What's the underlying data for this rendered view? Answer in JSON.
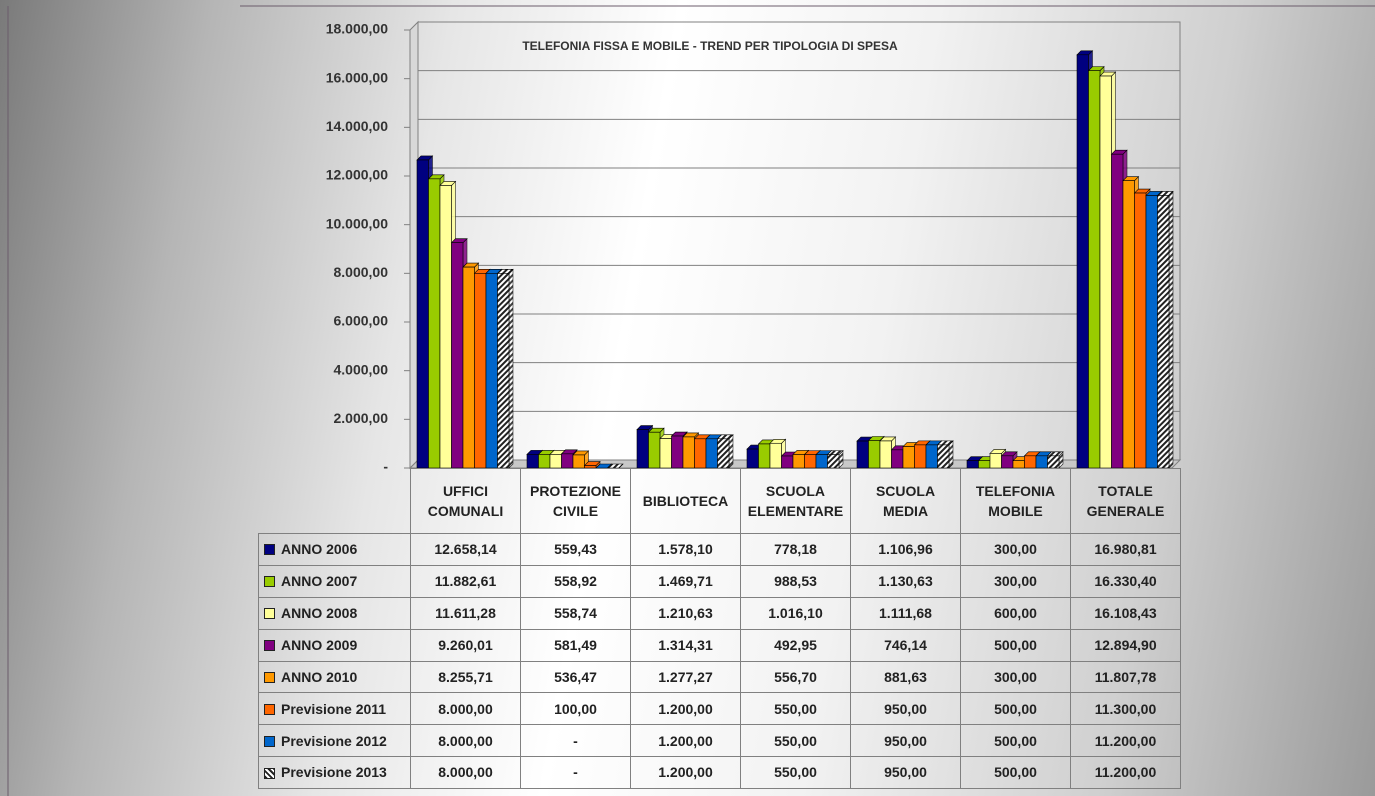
{
  "chart_data": {
    "type": "bar",
    "title": "TELEFONIA FISSA E MOBILE - TREND PER TIPOLOGIA DI SPESA",
    "categories": [
      "UFFICI\nCOMUNALI",
      "PROTEZIONE\nCIVILE",
      "BIBLIOTECA",
      "SCUOLA\nELEMENTARE",
      "SCUOLA\nMEDIA",
      "TELEFONIA\nMOBILE",
      "TOTALE\nGENERALE"
    ],
    "ylim": [
      0,
      18000
    ],
    "yticks": [
      {
        "value": 0,
        "label": "-"
      },
      {
        "value": 2000,
        "label": "2.000,00"
      },
      {
        "value": 4000,
        "label": "4.000,00"
      },
      {
        "value": 6000,
        "label": "6.000,00"
      },
      {
        "value": 8000,
        "label": "8.000,00"
      },
      {
        "value": 10000,
        "label": "10.000,00"
      },
      {
        "value": 12000,
        "label": "12.000,00"
      },
      {
        "value": 14000,
        "label": "14.000,00"
      },
      {
        "value": 16000,
        "label": "16.000,00"
      },
      {
        "value": 18000,
        "label": "18.000,00"
      }
    ],
    "grid": true,
    "series": [
      {
        "name": "ANNO 2006",
        "color": "#000080",
        "values": [
          12658.14,
          559.43,
          1578.1,
          778.18,
          1106.96,
          300,
          16980.81
        ],
        "value_labels": [
          "12.658,14",
          "559,43",
          "1.578,10",
          "778,18",
          "1.106,96",
          "300,00",
          "16.980,81"
        ]
      },
      {
        "name": "ANNO 2007",
        "color": "#99cc00",
        "values": [
          11882.61,
          558.92,
          1469.71,
          988.53,
          1130.63,
          300,
          16330.4
        ],
        "value_labels": [
          "11.882,61",
          "558,92",
          "1.469,71",
          "988,53",
          "1.130,63",
          "300,00",
          "16.330,40"
        ]
      },
      {
        "name": "ANNO 2008",
        "color": "#ffff99",
        "values": [
          11611.28,
          558.74,
          1210.63,
          1016.1,
          1111.68,
          600,
          16108.43
        ],
        "value_labels": [
          "11.611,28",
          "558,74",
          "1.210,63",
          "1.016,10",
          "1.111,68",
          "600,00",
          "16.108,43"
        ]
      },
      {
        "name": "ANNO 2009",
        "color": "#800080",
        "values": [
          9260.01,
          581.49,
          1314.31,
          492.95,
          746.14,
          500,
          12894.9
        ],
        "value_labels": [
          "9.260,01",
          "581,49",
          "1.314,31",
          "492,95",
          "746,14",
          "500,00",
          "12.894,90"
        ]
      },
      {
        "name": "ANNO 2010",
        "color": "#ff9900",
        "values": [
          8255.71,
          536.47,
          1277.27,
          556.7,
          881.63,
          300,
          11807.78
        ],
        "value_labels": [
          "8.255,71",
          "536,47",
          "1.277,27",
          "556,70",
          "881,63",
          "300,00",
          "11.807,78"
        ]
      },
      {
        "name": "Previsione 2011",
        "color": "#ff6600",
        "values": [
          8000,
          100,
          1200,
          550,
          950,
          500,
          11300
        ],
        "value_labels": [
          "8.000,00",
          "100,00",
          "1.200,00",
          "550,00",
          "950,00",
          "500,00",
          "11.300,00"
        ]
      },
      {
        "name": "Previsione 2012",
        "color": "#0066cc",
        "values": [
          8000,
          0,
          1200,
          550,
          950,
          500,
          11200
        ],
        "value_labels": [
          "8.000,00",
          "-",
          "1.200,00",
          "550,00",
          "950,00",
          "500,00",
          "11.200,00"
        ]
      },
      {
        "name": "Previsione 2013",
        "color": "#222222",
        "pattern": "hatch",
        "values": [
          8000,
          0,
          1200,
          550,
          950,
          500,
          11200
        ],
        "value_labels": [
          "8.000,00",
          "-",
          "1.200,00",
          "550,00",
          "950,00",
          "500,00",
          "11.200,00"
        ]
      }
    ]
  }
}
